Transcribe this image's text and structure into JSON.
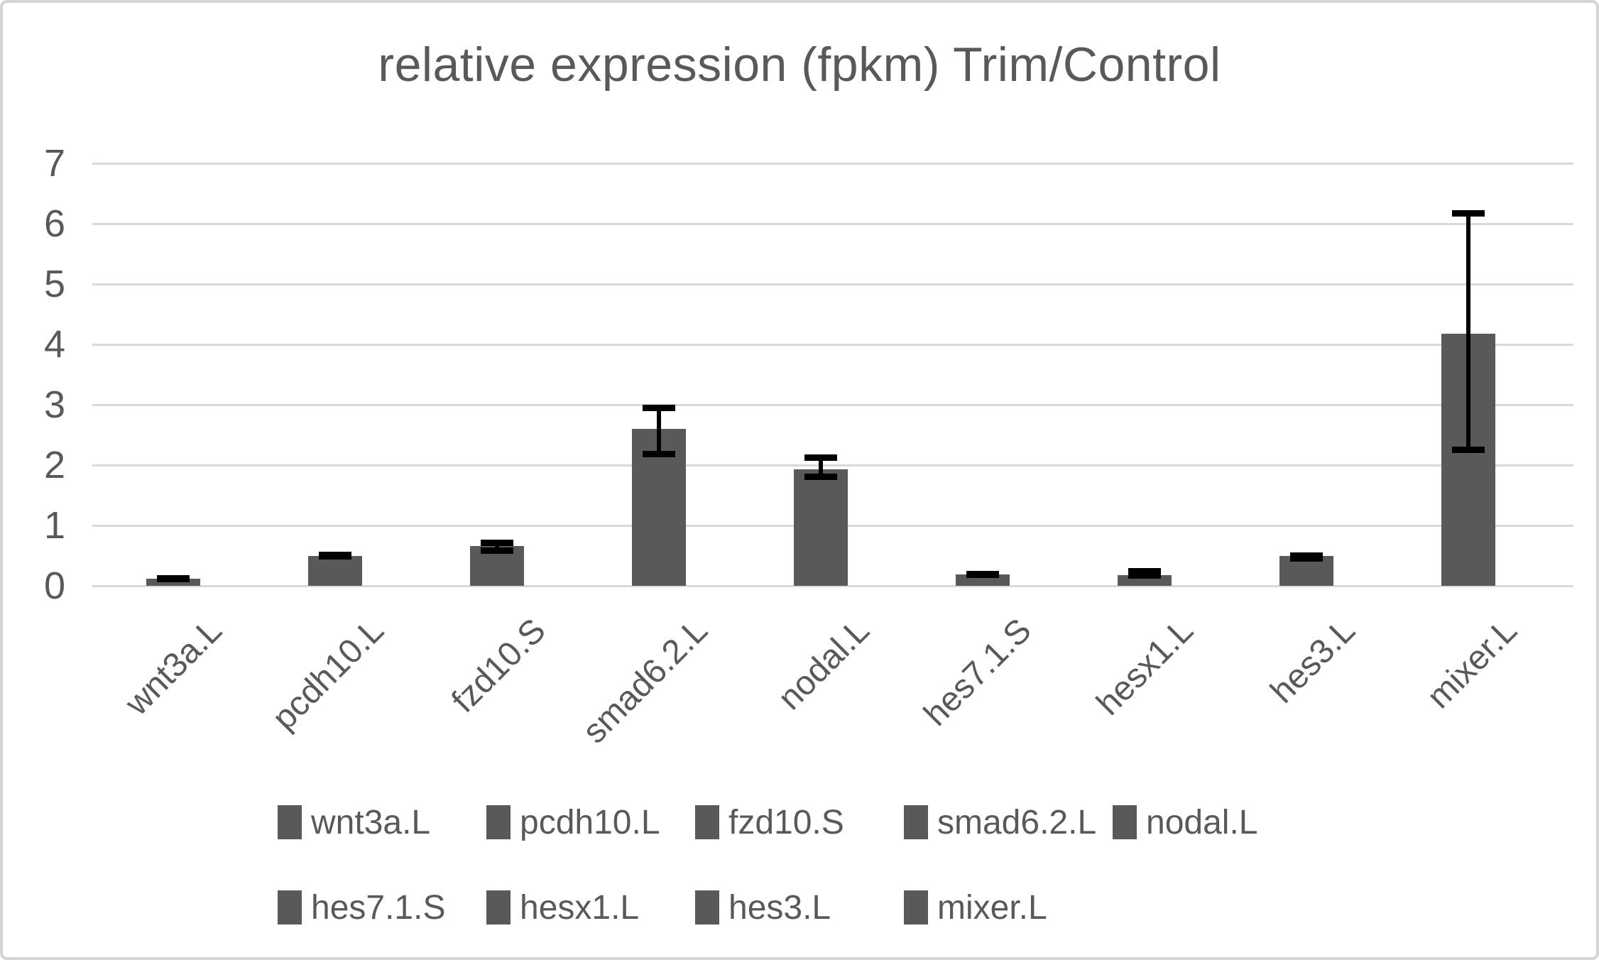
{
  "chart_data": {
    "type": "bar",
    "title": "relative expression (fpkm) Trim/Control",
    "categories": [
      "wnt3a.L",
      "pcdh10.L",
      "fzd10.S",
      "smad6.2.L",
      "nodal.L",
      "hes7.1.S",
      "hesx1.L",
      "hes3.L",
      "mixer.L"
    ],
    "values": [
      0.12,
      0.5,
      0.66,
      2.6,
      1.93,
      0.19,
      0.18,
      0.49,
      4.18
    ],
    "error_low": [
      0.06,
      0.44,
      0.53,
      2.13,
      1.75,
      0.13,
      0.12,
      0.4,
      2.2
    ],
    "error_high": [
      0.18,
      0.57,
      0.77,
      3.0,
      2.18,
      0.25,
      0.29,
      0.55,
      6.22
    ],
    "xlabel": "",
    "ylabel": "",
    "ylim": [
      0,
      7
    ],
    "yticks": [
      0,
      1,
      2,
      3,
      4,
      5,
      6,
      7
    ],
    "grid": true,
    "legend_position": "bottom",
    "legend_entries": [
      "wnt3a.L",
      "pcdh10.L",
      "fzd10.S",
      "smad6.2.L",
      "nodal.L",
      "hes7.1.S",
      "hesx1.L",
      "hes3.L",
      "mixer.L"
    ],
    "colors": {
      "bar": "#595959",
      "error_bar": "#000000",
      "gridline": "#d9d9d9",
      "text": "#595959",
      "frame_border": "#d4d4d4",
      "background": "#ffffff"
    }
  }
}
